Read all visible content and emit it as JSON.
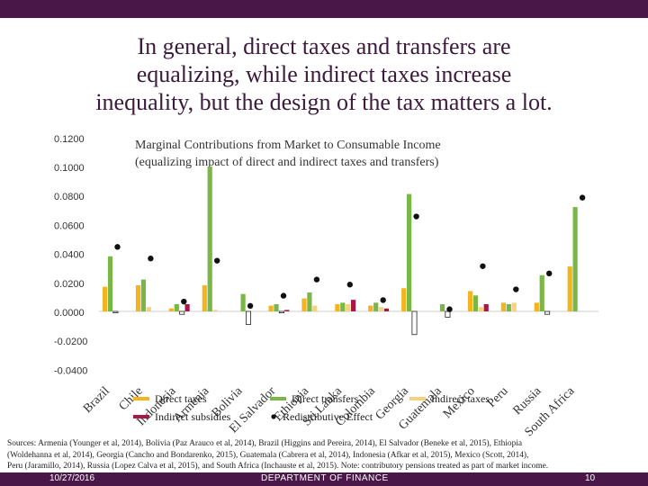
{
  "slide": {
    "title_lines": [
      "In general, direct taxes and transfers are",
      "equalizing, while indirect taxes increase",
      "inequality, but the design of the tax matters a lot."
    ],
    "sources_lines": [
      "Sources: Armenia (Younger et al, 2014), Bolivia (Paz Arauco et al, 2014), Brazil (Higgins and Pereira, 2014), El Salvador (Beneke et al, 2015), Ethiopia",
      "(Woldehanna et al, 2014), Georgia (Cancho and Bondarenko, 2015), Guatemala (Cabrera et al, 2014), Indonesia (Afkar et al, 2015), Mexico (Scott, 2014),",
      "Peru (Jaramillo, 2014), Russia (Lopez Calva et al, 2015), and South Africa (Inchauste et al, 2015). Note: contributory pensions treated as part of market income."
    ]
  },
  "footer": {
    "date": "10/27/2016",
    "department": "DEPARTMENT OF FINANCE",
    "page": "10"
  },
  "chart_data": {
    "type": "bar",
    "title_lines": [
      "Marginal Contributions from Market to Consumable Income",
      "(equalizing impact of direct and indirect taxes and transfers)"
    ],
    "ylim": [
      -0.04,
      0.12
    ],
    "yticks": [
      "0.1200",
      "0.1000",
      "0.0800",
      "0.0600",
      "0.0400",
      "0.0200",
      "0.0000",
      "-0.0200",
      "-0.0400"
    ],
    "categories": [
      "Brazil",
      "Chile",
      "Indonesia",
      "Armenia",
      "Bolivia",
      "El Salvador",
      "Ethiopia",
      "Sri Lanka",
      "Colombia",
      "Georgia",
      "Guatemala",
      "Mexico",
      "Peru",
      "Russia",
      "South Africa"
    ],
    "series": [
      {
        "name": "Direct taxes",
        "color": "#f2b420",
        "values": [
          0.017,
          0.018,
          0.002,
          0.018,
          0.0,
          0.004,
          0.009,
          0.005,
          0.004,
          0.016,
          0.0,
          0.014,
          0.006,
          0.006,
          0.031
        ]
      },
      {
        "name": "Direct transfers",
        "color": "#7ab648",
        "values": [
          0.038,
          0.022,
          0.005,
          0.1,
          0.012,
          0.005,
          0.013,
          0.006,
          0.006,
          0.081,
          0.005,
          0.011,
          0.005,
          0.025,
          0.072
        ]
      },
      {
        "name": "Indirect taxes",
        "color": "#f5d27f",
        "values": [
          -0.001,
          0.003,
          -0.002,
          0.001,
          -0.009,
          -0.001,
          0.004,
          0.005,
          0.003,
          -0.016,
          -0.004,
          0.003,
          0.006,
          -0.002,
          0.0
        ]
      },
      {
        "name": "Indirect subsidies",
        "color": "#a5194a",
        "values": [
          0.0,
          0.0,
          0.005,
          0.0,
          0.0,
          0.001,
          0.0,
          0.008,
          0.002,
          0.0,
          0.0,
          0.005,
          0.0,
          0.0,
          0.0
        ]
      }
    ],
    "points": {
      "name": "Redistributive Effect",
      "color": "#111111",
      "values": [
        0.0445,
        0.0365,
        0.0068,
        0.035,
        0.0038,
        0.0108,
        0.022,
        0.0185,
        0.0078,
        0.0655,
        0.0015,
        0.0312,
        0.0152,
        0.0262,
        0.0785
      ]
    }
  }
}
